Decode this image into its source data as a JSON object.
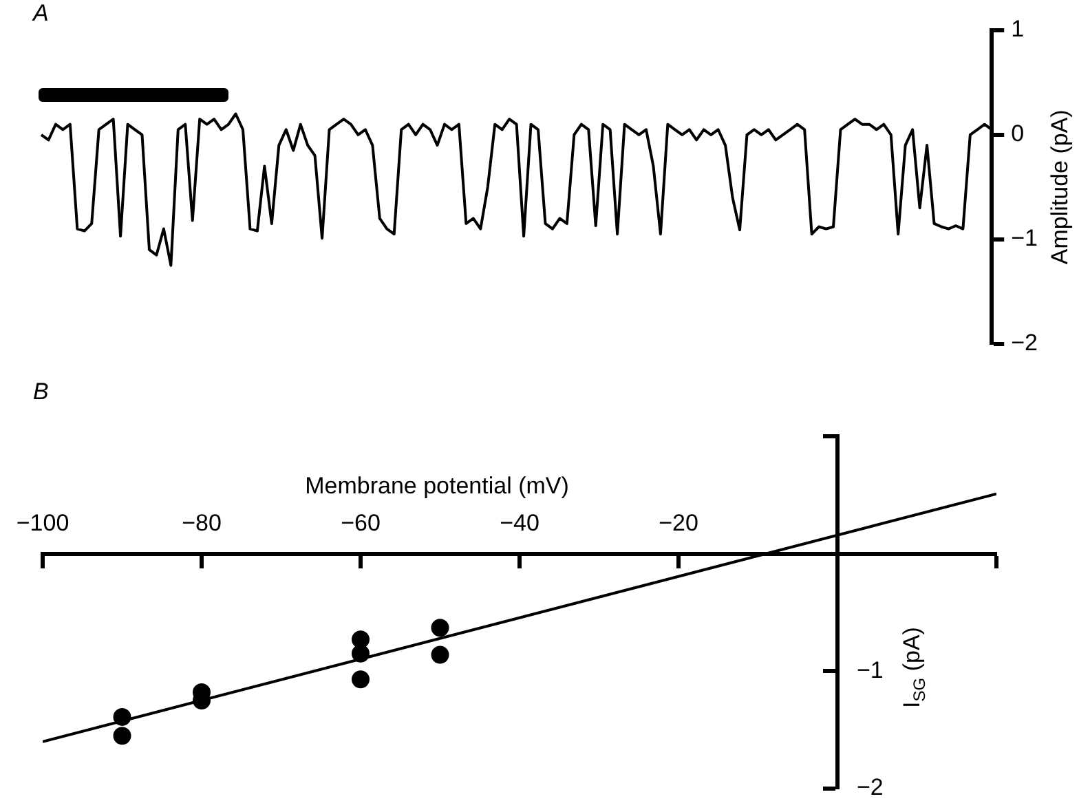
{
  "chart_data": [
    {
      "type": "line",
      "title": "A",
      "ylabel": "Amplitude (pA)",
      "categories": [
        null,
        null,
        null,
        null,
        null,
        null,
        null,
        null,
        null,
        null,
        null,
        null,
        null,
        null,
        null,
        null,
        null,
        null,
        null,
        null,
        null,
        null,
        null,
        null,
        null,
        null,
        null,
        null,
        null,
        null,
        null,
        null,
        null,
        null,
        null,
        null,
        null,
        null,
        null,
        null,
        null,
        null,
        null,
        null,
        null,
        null,
        null,
        null,
        null,
        null,
        null,
        null,
        null,
        null,
        null,
        null,
        null,
        null,
        null,
        null,
        null,
        null,
        null,
        null,
        null,
        null,
        null,
        null,
        null,
        null,
        null,
        null,
        null,
        null,
        null,
        null,
        null,
        null,
        null,
        null,
        null,
        null,
        null,
        null,
        null,
        null,
        null,
        null,
        null,
        null,
        null,
        null,
        null,
        null,
        null,
        null,
        null,
        null,
        null,
        null,
        null,
        null,
        null,
        null,
        null,
        null,
        null,
        null,
        null,
        null,
        null,
        null,
        null,
        null,
        null,
        null,
        null,
        null,
        null,
        null,
        null,
        null,
        null,
        null,
        null,
        null,
        null,
        null,
        null,
        null,
        null,
        null,
        null
      ],
      "values": [
        0.0,
        -0.05,
        0.1,
        0.05,
        0.1,
        -0.9,
        -0.92,
        -0.85,
        0.05,
        0.1,
        0.15,
        -0.97,
        0.1,
        0.05,
        0.0,
        -1.1,
        -1.15,
        -0.9,
        -1.25,
        0.05,
        0.1,
        -0.82,
        0.15,
        0.1,
        0.15,
        0.05,
        0.1,
        0.2,
        0.05,
        -0.9,
        -0.92,
        -0.3,
        -0.85,
        -0.1,
        0.05,
        -0.15,
        0.1,
        -0.1,
        -0.2,
        -0.99,
        0.05,
        0.1,
        0.15,
        0.1,
        0.0,
        0.05,
        -0.1,
        -0.8,
        -0.9,
        -0.95,
        0.05,
        0.1,
        0.0,
        0.1,
        0.05,
        -0.1,
        0.1,
        0.05,
        0.1,
        -0.85,
        -0.8,
        -0.9,
        -0.5,
        0.1,
        0.05,
        0.15,
        0.1,
        -0.97,
        0.1,
        0.05,
        -0.85,
        -0.9,
        -0.8,
        -0.85,
        0.0,
        0.1,
        0.05,
        -0.87,
        0.1,
        0.05,
        -0.95,
        0.1,
        0.05,
        0.0,
        0.05,
        -0.3,
        -0.95,
        0.1,
        0.05,
        0.0,
        0.05,
        -0.05,
        0.05,
        0.0,
        0.05,
        -0.1,
        -0.6,
        -0.91,
        0.0,
        0.05,
        0.0,
        0.05,
        -0.05,
        0.0,
        0.05,
        0.1,
        0.05,
        -0.95,
        -0.88,
        -0.9,
        -0.88,
        0.05,
        0.1,
        0.15,
        0.1,
        0.1,
        0.05,
        0.1,
        0.0,
        -0.95,
        -0.1,
        0.05,
        -0.7,
        -0.1,
        -0.85,
        -0.88,
        -0.9,
        -0.87,
        -0.9,
        0.0,
        0.05,
        0.1,
        0.05
      ],
      "color": "#000000",
      "ylim": [
        -2,
        1
      ],
      "yticks": [
        1,
        0,
        {
          "value": -1,
          "label": "−1"
        },
        {
          "value": -2,
          "label": "−2"
        }
      ],
      "tick_labels": "y",
      "marker": "none"
    },
    {
      "type": "scatter",
      "title": "B",
      "xlabel": "Membrane potential (mV)",
      "ylabel": "I$_{SG}$ (pA)",
      "marker": "circle",
      "series": [
        {
          "type": "scatter",
          "color": "#000000",
          "x": [
            -90,
            -90,
            -80,
            -80,
            -60,
            -60,
            -60,
            -50,
            -50
          ],
          "values": [
            -1.39,
            -1.55,
            -1.18,
            -1.25,
            -0.73,
            -0.85,
            -1.07,
            -0.63,
            -0.86
          ]
        },
        {
          "type": "line",
          "color": "#000000",
          "marker": "none",
          "x": [
            -100,
            20
          ],
          "values": [
            -1.6,
            0.51
          ]
        }
      ],
      "xlim": [
        -100,
        20
      ],
      "xticks": [
        {
          "value": -100,
          "label": "−100"
        },
        {
          "value": -80,
          "label": "−80"
        },
        {
          "value": -60,
          "label": "−60"
        },
        {
          "value": -40,
          "label": "−40"
        },
        {
          "value": -20,
          "label": "−20"
        },
        {
          "value": 0,
          "label": null
        },
        {
          "value": 20,
          "label": null
        }
      ],
      "ylim": [
        -2,
        1
      ],
      "yticks": [
        {
          "value": 1,
          "label": null
        },
        {
          "value": 0,
          "label": null
        },
        {
          "value": -1,
          "label": "−1"
        },
        {
          "value": -2,
          "label": "−2"
        }
      ]
    }
  ]
}
